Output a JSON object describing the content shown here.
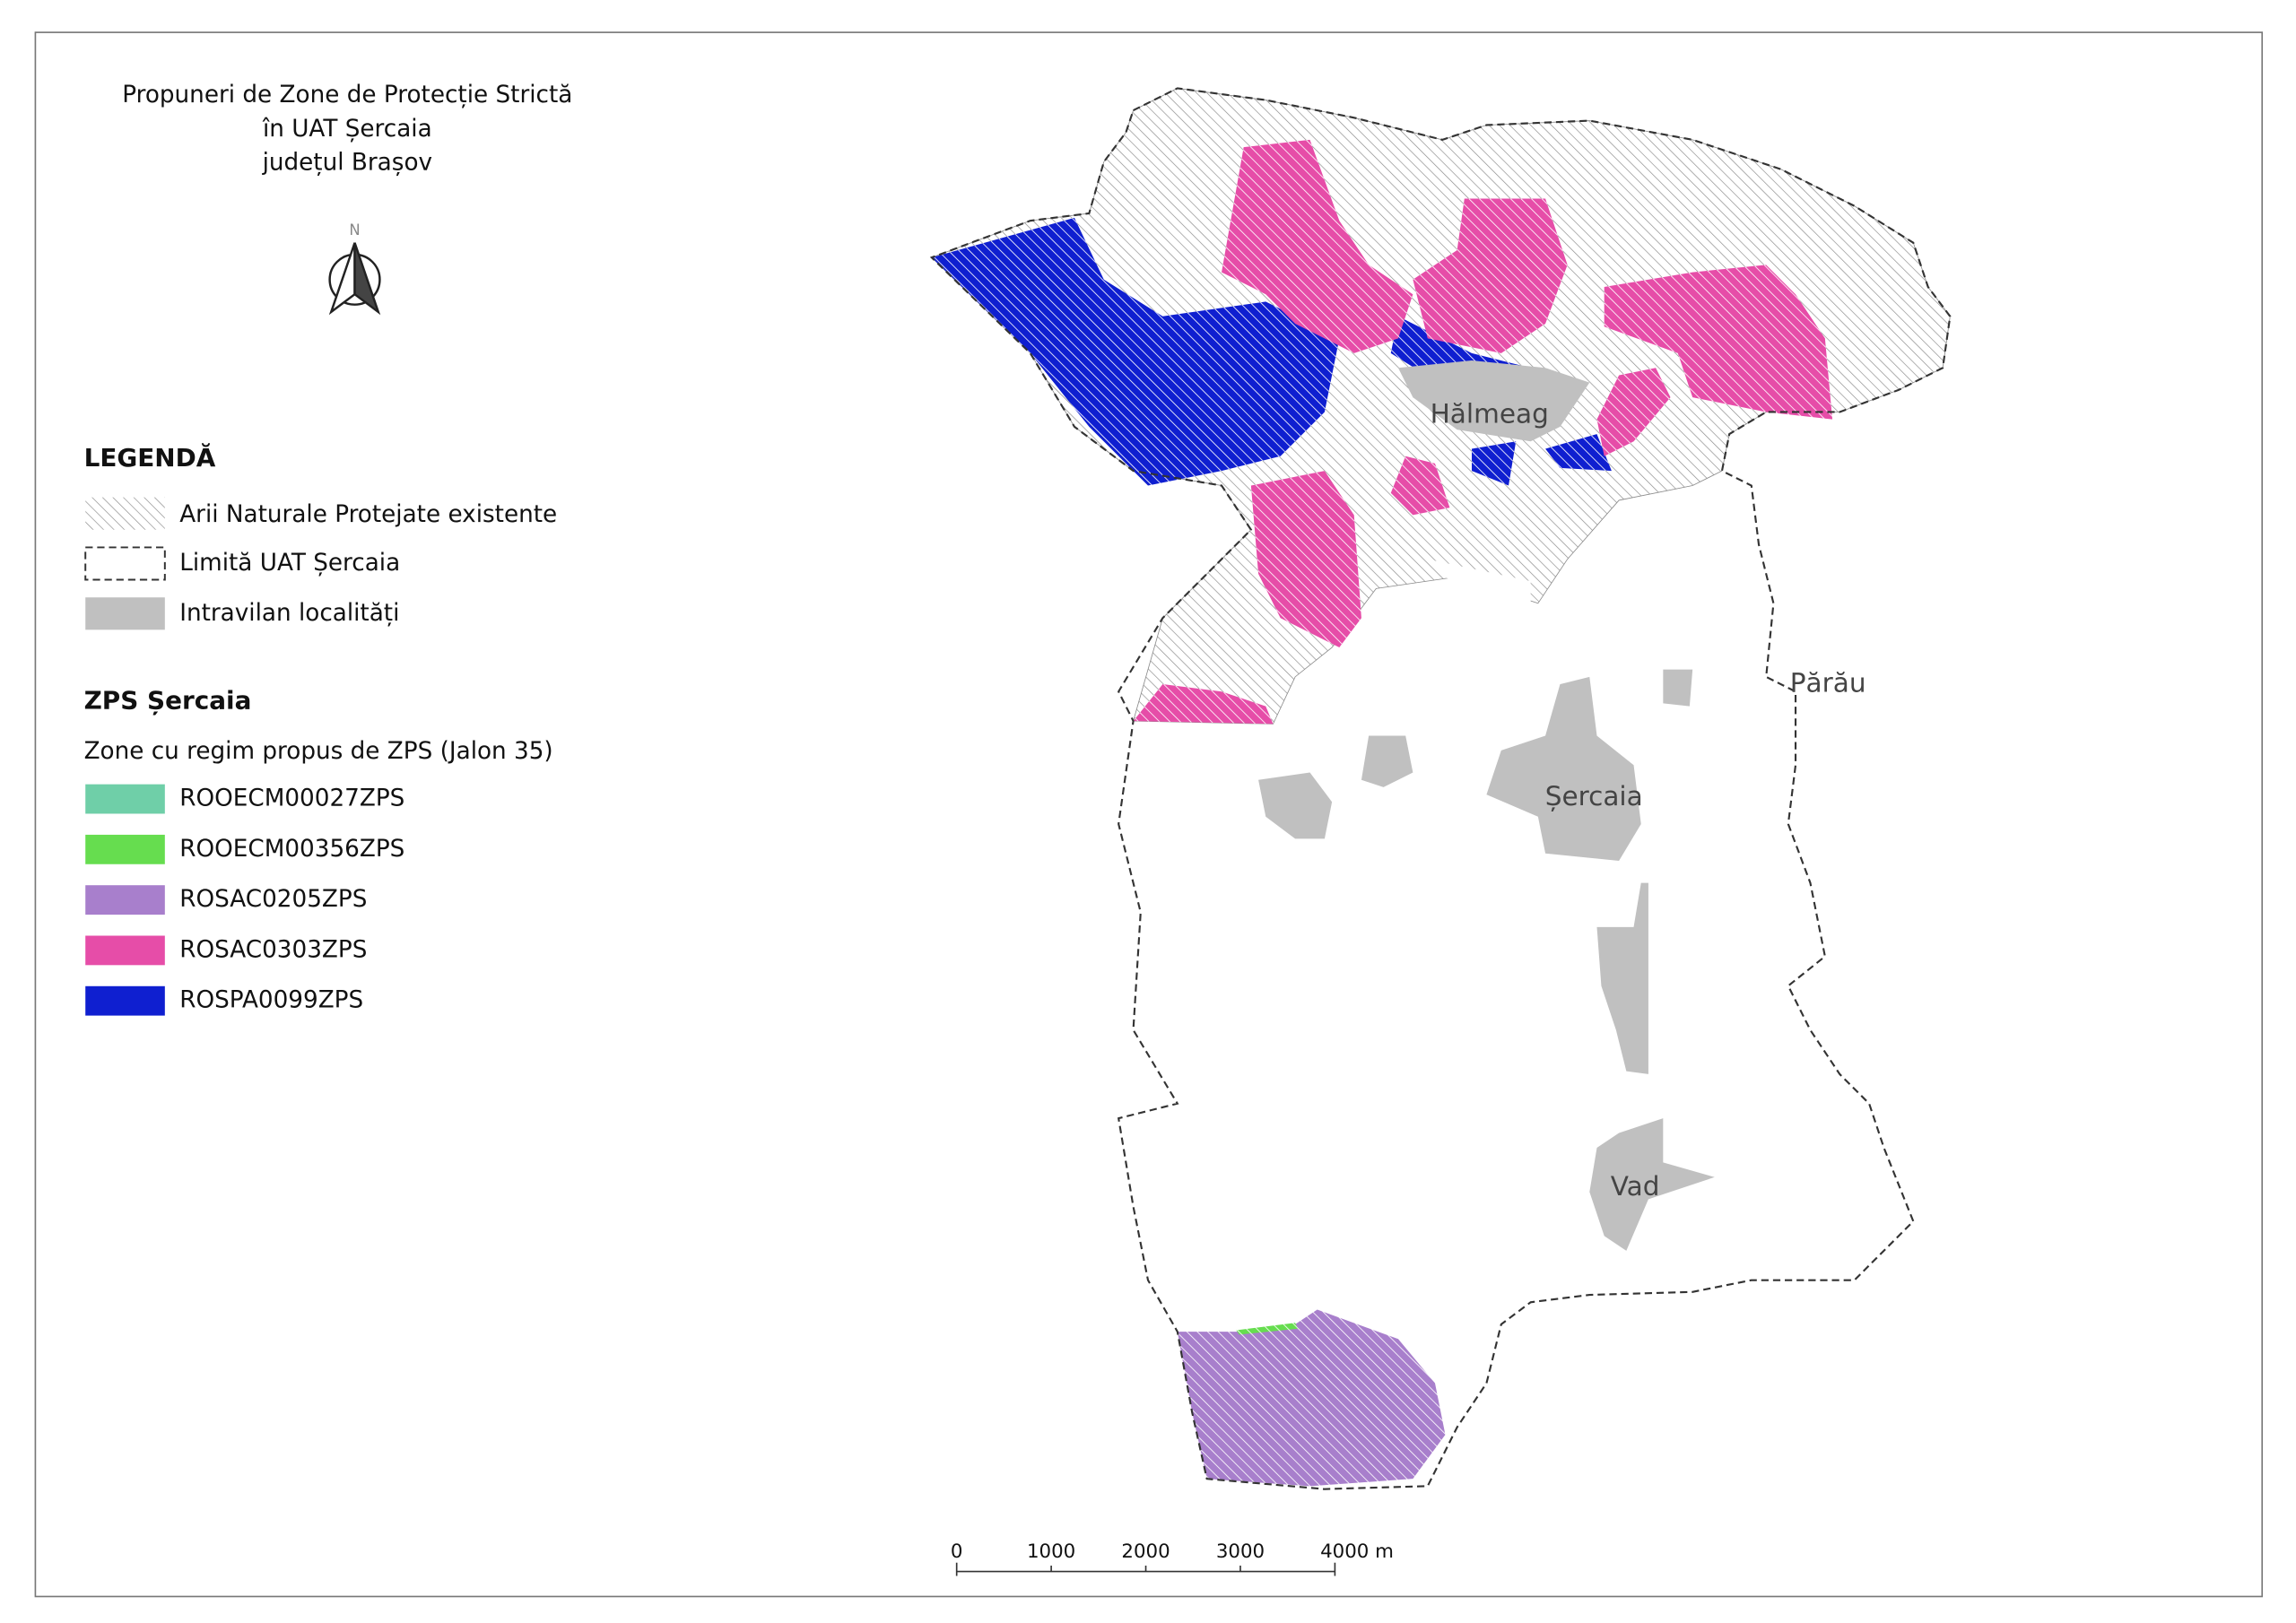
{
  "title": [
    "Propuneri de Zone de Protecție Strictă",
    "în UAT Șercaia",
    "județul Brașov"
  ],
  "north_arrow": "N",
  "legend": {
    "title": "LEGENDĂ",
    "items": [
      {
        "label": "Arii Naturale Protejate existente",
        "color": "#8a8a8a"
      },
      {
        "label": "Limită UAT Șercaia",
        "color": "#333333"
      },
      {
        "label": "Intravilan localități",
        "color": "#c0c0c0"
      }
    ]
  },
  "zps_legend": {
    "title": "ZPS Șercaia",
    "subtitle": "Zone cu regim propus de ZPS (Jalon 35)",
    "items": [
      {
        "label": "ROOECM00027ZPS",
        "color": "#6fcfa8"
      },
      {
        "label": "ROOECM00356ZPS",
        "color": "#66dd4f"
      },
      {
        "label": "ROSAC0205ZPS",
        "color": "#a87fcc"
      },
      {
        "label": "ROSAC0303ZPS",
        "color": "#e64da8"
      },
      {
        "label": "ROSPA0099ZPS",
        "color": "#0f1fd0"
      }
    ]
  },
  "places": [
    "Hălmeag",
    "Părău",
    "Șercaia",
    "Vad"
  ],
  "scale_bar": {
    "labels": [
      "0",
      "1000",
      "2000",
      "3000",
      "4000 m"
    ]
  }
}
